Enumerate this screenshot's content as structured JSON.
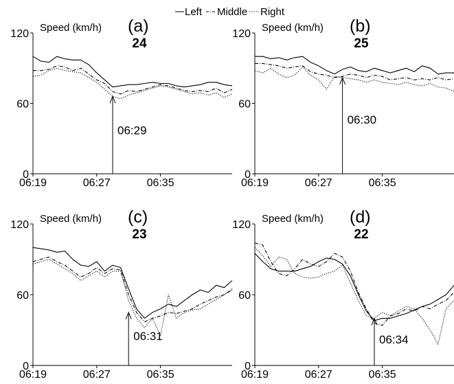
{
  "legend": {
    "entries": [
      {
        "name": "Left",
        "dash": "solid"
      },
      {
        "name": "Middle",
        "dash": "dashdot"
      },
      {
        "name": "Right",
        "dash": "dotted"
      }
    ],
    "placement": "top-center"
  },
  "chart_data": [
    {
      "type": "line",
      "panel_label": "(a)",
      "title": "24",
      "ylabel": "Speed (km/h)",
      "ylim": [
        0,
        120
      ],
      "yticks": [
        0,
        60,
        120
      ],
      "xlim": [
        0,
        25
      ],
      "xticks": [
        {
          "x": 0,
          "label": "06:19"
        },
        {
          "x": 8,
          "label": "06:27"
        },
        {
          "x": 16,
          "label": "06:35"
        }
      ],
      "x": [
        0,
        1,
        2,
        3,
        4,
        5,
        6,
        7,
        8,
        9,
        10,
        11,
        12,
        13,
        14,
        15,
        16,
        17,
        18,
        19,
        20,
        21,
        22,
        23,
        24,
        25
      ],
      "series": [
        {
          "name": "Left",
          "values": [
            100,
            96,
            95,
            100,
            98,
            97,
            97,
            93,
            86,
            80,
            74,
            75,
            76,
            76,
            77,
            78,
            77,
            77,
            75,
            74,
            75,
            76,
            78,
            78,
            76,
            75
          ]
        },
        {
          "name": "Middle",
          "values": [
            88,
            88,
            89,
            92,
            91,
            88,
            90,
            85,
            80,
            77,
            70,
            68,
            71,
            70,
            72,
            74,
            76,
            75,
            73,
            71,
            70,
            71,
            70,
            73,
            69,
            72
          ]
        },
        {
          "name": "Right",
          "values": [
            83,
            84,
            88,
            90,
            88,
            87,
            86,
            82,
            78,
            72,
            66,
            64,
            67,
            69,
            71,
            73,
            75,
            74,
            72,
            70,
            68,
            69,
            67,
            69,
            65,
            68
          ]
        }
      ],
      "annotation": {
        "label": "06:29",
        "x": 10,
        "y": 66
      },
      "grid": false
    },
    {
      "type": "line",
      "panel_label": "(b)",
      "title": "25",
      "ylabel": "Speed (km/h)",
      "ylim": [
        0,
        120
      ],
      "yticks": [
        0,
        60,
        120
      ],
      "xlim": [
        0,
        25
      ],
      "xticks": [
        {
          "x": 0,
          "label": "06:19"
        },
        {
          "x": 8,
          "label": "06:27"
        },
        {
          "x": 16,
          "label": "06:35"
        }
      ],
      "x": [
        0,
        1,
        2,
        3,
        4,
        5,
        6,
        7,
        8,
        9,
        10,
        11,
        12,
        13,
        14,
        15,
        16,
        17,
        18,
        19,
        20,
        21,
        22,
        23,
        24,
        25
      ],
      "series": [
        {
          "name": "Left",
          "values": [
            100,
            100,
            98,
            99,
            97,
            99,
            100,
            95,
            92,
            88,
            85,
            89,
            91,
            88,
            87,
            90,
            88,
            86,
            88,
            90,
            87,
            92,
            90,
            85,
            86,
            86
          ]
        },
        {
          "name": "Middle",
          "values": [
            94,
            94,
            93,
            92,
            90,
            91,
            92,
            87,
            85,
            84,
            82,
            83,
            85,
            84,
            82,
            84,
            83,
            80,
            81,
            82,
            80,
            81,
            80,
            82,
            80,
            81
          ]
        },
        {
          "name": "Right",
          "values": [
            88,
            86,
            90,
            85,
            82,
            84,
            91,
            84,
            80,
            72,
            83,
            82,
            81,
            80,
            78,
            80,
            78,
            77,
            76,
            78,
            76,
            75,
            77,
            74,
            73,
            70
          ]
        }
      ],
      "annotation": {
        "label": "06:30",
        "x": 11,
        "y": 82
      },
      "grid": false
    },
    {
      "type": "line",
      "panel_label": "(c)",
      "title": "23",
      "ylabel": "Speed (km/h)",
      "ylim": [
        0,
        120
      ],
      "yticks": [
        0,
        60,
        120
      ],
      "xlim": [
        0,
        25
      ],
      "xticks": [
        {
          "x": 0,
          "label": "06:19"
        },
        {
          "x": 8,
          "label": "06:27"
        },
        {
          "x": 16,
          "label": "06:35"
        }
      ],
      "x": [
        0,
        1,
        2,
        3,
        4,
        5,
        6,
        7,
        8,
        9,
        10,
        11,
        12,
        13,
        14,
        15,
        16,
        17,
        18,
        19,
        20,
        21,
        22,
        23,
        24,
        25
      ],
      "series": [
        {
          "name": "Left",
          "values": [
            100,
            99,
            98,
            96,
            97,
            90,
            85,
            84,
            88,
            80,
            85,
            83,
            65,
            48,
            40,
            45,
            48,
            52,
            50,
            55,
            60,
            64,
            62,
            68,
            66,
            72
          ]
        },
        {
          "name": "Middle",
          "values": [
            88,
            90,
            92,
            88,
            85,
            80,
            75,
            78,
            83,
            78,
            82,
            81,
            60,
            45,
            37,
            40,
            42,
            45,
            44,
            46,
            48,
            52,
            55,
            58,
            60,
            64
          ]
        },
        {
          "name": "Right",
          "values": [
            86,
            88,
            90,
            86,
            82,
            78,
            72,
            76,
            80,
            75,
            80,
            80,
            55,
            40,
            32,
            40,
            25,
            60,
            40,
            45,
            47,
            48,
            52,
            56,
            60,
            65
          ]
        }
      ],
      "annotation": {
        "label": "06:31",
        "x": 12,
        "y": 45
      },
      "grid": false
    },
    {
      "type": "line",
      "panel_label": "(d)",
      "title": "22",
      "ylabel": "Speed (km/h)",
      "ylim": [
        0,
        120
      ],
      "yticks": [
        0,
        60,
        120
      ],
      "xlim": [
        0,
        25
      ],
      "xticks": [
        {
          "x": 0,
          "label": "06:19"
        },
        {
          "x": 8,
          "label": "06:27"
        },
        {
          "x": 16,
          "label": "06:35"
        }
      ],
      "x": [
        0,
        1,
        2,
        3,
        4,
        5,
        6,
        7,
        8,
        9,
        10,
        11,
        12,
        13,
        14,
        15,
        16,
        17,
        18,
        19,
        20,
        21,
        22,
        23,
        24,
        25
      ],
      "series": [
        {
          "name": "Left",
          "values": [
            95,
            88,
            82,
            80,
            80,
            80,
            82,
            84,
            88,
            91,
            90,
            86,
            76,
            60,
            46,
            38,
            40,
            40,
            42,
            44,
            47,
            50,
            52,
            56,
            60,
            68
          ]
        },
        {
          "name": "Middle",
          "values": [
            104,
            102,
            88,
            78,
            76,
            82,
            90,
            86,
            84,
            88,
            95,
            92,
            80,
            62,
            48,
            36,
            34,
            42,
            44,
            48,
            46,
            50,
            48,
            52,
            55,
            62
          ]
        },
        {
          "name": "Right",
          "values": [
            100,
            93,
            84,
            92,
            90,
            78,
            75,
            74,
            75,
            78,
            80,
            85,
            70,
            55,
            42,
            40,
            45,
            42,
            46,
            50,
            48,
            40,
            30,
            18,
            48,
            55
          ]
        }
      ],
      "annotation": {
        "label": "06:34",
        "x": 15,
        "y": 40
      },
      "grid": false
    }
  ]
}
